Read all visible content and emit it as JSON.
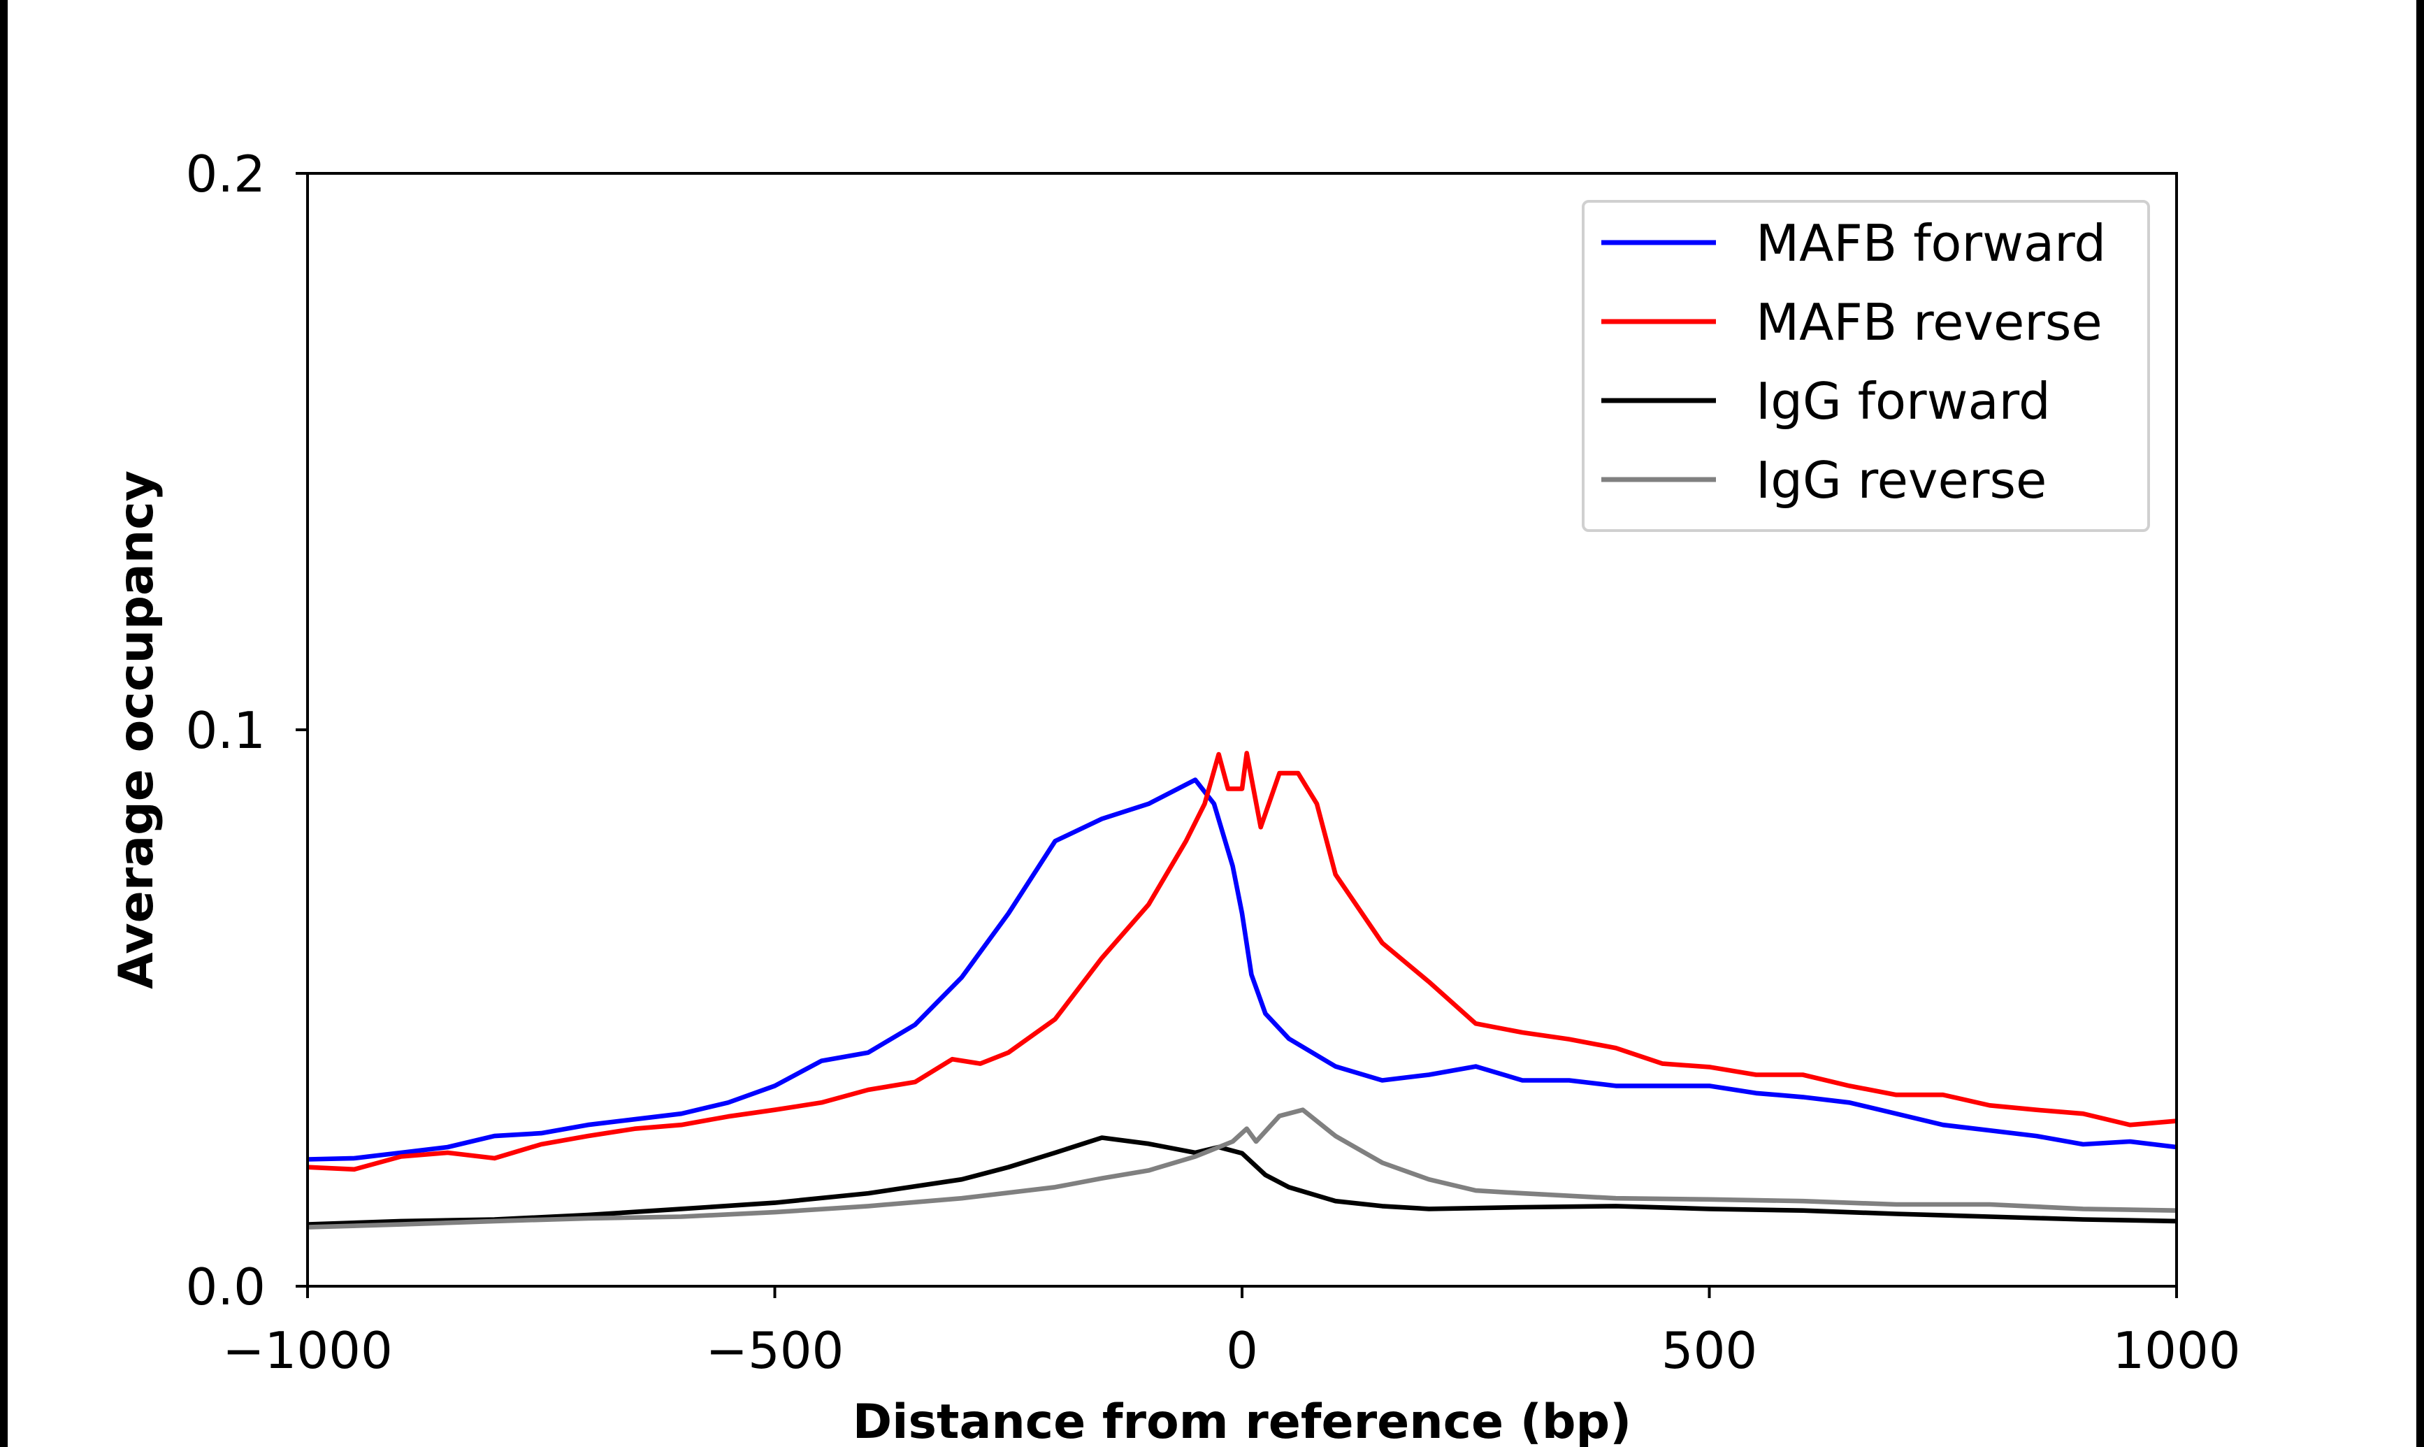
{
  "chart_data": {
    "type": "line",
    "title": "",
    "xlabel": "Distance from reference (bp)",
    "ylabel": "Average occupancy",
    "xlim": [
      -1000,
      1000
    ],
    "ylim": [
      0,
      0.2
    ],
    "xticks": [
      -1000,
      -500,
      0,
      500,
      1000
    ],
    "xtick_labels": [
      "−1000",
      "−500",
      "0",
      "500",
      "1000"
    ],
    "yticks": [
      0,
      0.1,
      0.2
    ],
    "ytick_labels": [
      "0.0",
      "0.1",
      "0.2"
    ],
    "grid": false,
    "legend_position": "top-right",
    "series": [
      {
        "name": "MAFB forward",
        "color": "#0000ff",
        "x": [
          -1000,
          -950,
          -900,
          -850,
          -800,
          -750,
          -700,
          -650,
          -600,
          -550,
          -500,
          -450,
          -400,
          -350,
          -300,
          -250,
          -200,
          -150,
          -100,
          -50,
          -30,
          -10,
          0,
          10,
          25,
          50,
          75,
          100,
          150,
          200,
          250,
          300,
          350,
          400,
          450,
          500,
          550,
          600,
          650,
          700,
          750,
          800,
          850,
          900,
          950,
          1000
        ],
        "y": [
          0.0228,
          0.023,
          0.024,
          0.025,
          0.027,
          0.0275,
          0.029,
          0.03,
          0.031,
          0.033,
          0.036,
          0.0405,
          0.042,
          0.047,
          0.0555,
          0.067,
          0.08,
          0.084,
          0.0867,
          0.091,
          0.0867,
          0.0755,
          0.067,
          0.056,
          0.049,
          0.0445,
          0.042,
          0.0395,
          0.037,
          0.038,
          0.0395,
          0.037,
          0.037,
          0.036,
          0.036,
          0.036,
          0.0347,
          0.034,
          0.033,
          0.031,
          0.029,
          0.028,
          0.027,
          0.0255,
          0.026,
          0.025
        ]
      },
      {
        "name": "MAFB reverse",
        "color": "#ff0000",
        "x": [
          -1000,
          -950,
          -900,
          -850,
          -800,
          -750,
          -700,
          -650,
          -600,
          -550,
          -500,
          -450,
          -400,
          -350,
          -310,
          -280,
          -250,
          -200,
          -150,
          -100,
          -60,
          -40,
          -25,
          -15,
          0,
          5,
          20,
          40,
          60,
          80,
          100,
          150,
          200,
          250,
          300,
          350,
          400,
          450,
          500,
          550,
          600,
          650,
          700,
          750,
          800,
          850,
          900,
          950,
          1000
        ],
        "y": [
          0.0214,
          0.021,
          0.0233,
          0.024,
          0.023,
          0.0255,
          0.027,
          0.0283,
          0.029,
          0.0305,
          0.0317,
          0.033,
          0.0353,
          0.0367,
          0.0408,
          0.04,
          0.042,
          0.048,
          0.059,
          0.0686,
          0.08,
          0.0867,
          0.0956,
          0.0894,
          0.0894,
          0.0958,
          0.0825,
          0.0922,
          0.0922,
          0.0867,
          0.074,
          0.0617,
          0.0547,
          0.0472,
          0.0456,
          0.0444,
          0.0428,
          0.04,
          0.0394,
          0.038,
          0.038,
          0.036,
          0.0344,
          0.0344,
          0.0325,
          0.0317,
          0.031,
          0.029,
          0.0297
        ]
      },
      {
        "name": "IgG forward",
        "color": "#000000",
        "x": [
          -1000,
          -900,
          -800,
          -700,
          -600,
          -500,
          -400,
          -300,
          -250,
          -200,
          -150,
          -100,
          -50,
          -25,
          0,
          25,
          50,
          100,
          150,
          200,
          300,
          400,
          500,
          600,
          700,
          800,
          900,
          1000
        ],
        "y": [
          0.0111,
          0.0117,
          0.012,
          0.0128,
          0.0139,
          0.015,
          0.0167,
          0.0192,
          0.0214,
          0.024,
          0.0267,
          0.0256,
          0.024,
          0.025,
          0.0239,
          0.02,
          0.0178,
          0.0153,
          0.0144,
          0.0139,
          0.0142,
          0.0144,
          0.0139,
          0.0136,
          0.013,
          0.0125,
          0.012,
          0.0117
        ]
      },
      {
        "name": "IgG reverse",
        "color": "#808080",
        "x": [
          -1000,
          -900,
          -800,
          -700,
          -600,
          -500,
          -400,
          -300,
          -200,
          -150,
          -100,
          -50,
          -10,
          5,
          15,
          40,
          65,
          100,
          150,
          200,
          250,
          300,
          400,
          500,
          600,
          700,
          800,
          900,
          1000
        ],
        "y": [
          0.0106,
          0.0111,
          0.0117,
          0.0122,
          0.0125,
          0.0133,
          0.0144,
          0.0158,
          0.0178,
          0.0194,
          0.0208,
          0.0233,
          0.026,
          0.0283,
          0.026,
          0.0306,
          0.0317,
          0.027,
          0.0222,
          0.0192,
          0.0172,
          0.0167,
          0.0158,
          0.0156,
          0.0153,
          0.0147,
          0.0147,
          0.0139,
          0.0136
        ]
      }
    ]
  }
}
